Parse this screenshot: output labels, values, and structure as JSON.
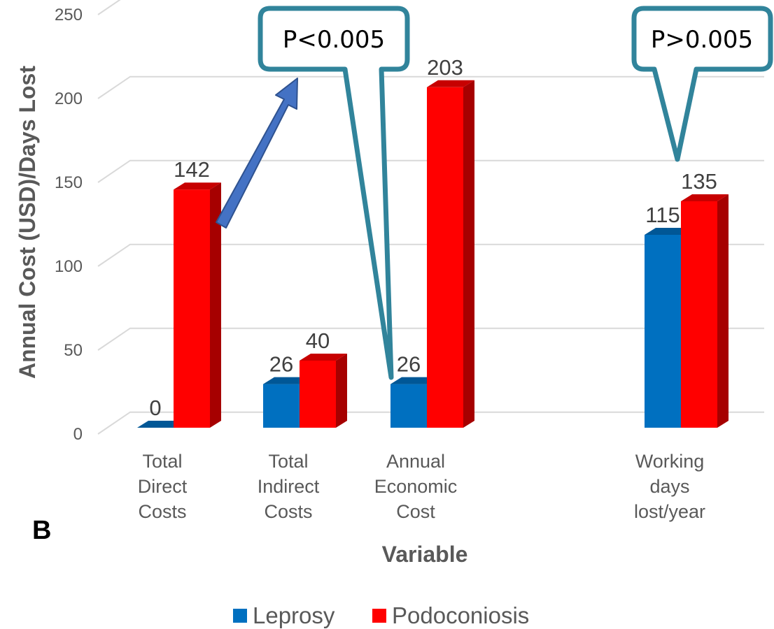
{
  "chart_data": {
    "type": "bar",
    "style": "3d-clustered-column",
    "categories": [
      [
        "Total",
        "Direct",
        "Costs"
      ],
      [
        "Total",
        "Indirect",
        "Costs"
      ],
      [
        "Annual",
        "Economic",
        "Cost"
      ],
      [
        "Working",
        "days",
        "lost/year"
      ]
    ],
    "series": [
      {
        "name": "Leprosy",
        "color": "#0070C0",
        "values": [
          0,
          26,
          26,
          115
        ]
      },
      {
        "name": "Podoconiosis",
        "color": "#FF0000",
        "values": [
          142,
          40,
          203,
          135
        ]
      }
    ],
    "data_labels": [
      [
        "0",
        "26",
        "26",
        "115"
      ],
      [
        "142",
        "40",
        "203",
        "135"
      ]
    ],
    "ylabel": "Annual Cost (USD)/Days Lost",
    "xlabel": "Variable",
    "ylim": [
      0,
      250
    ],
    "yticks": [
      "0",
      "50",
      "100",
      "150",
      "200",
      "250"
    ],
    "grid": true,
    "legend": "bottom",
    "panel_label": "B",
    "annotations": [
      {
        "text": "P<0.005"
      },
      {
        "text": "P>0.005"
      }
    ]
  }
}
